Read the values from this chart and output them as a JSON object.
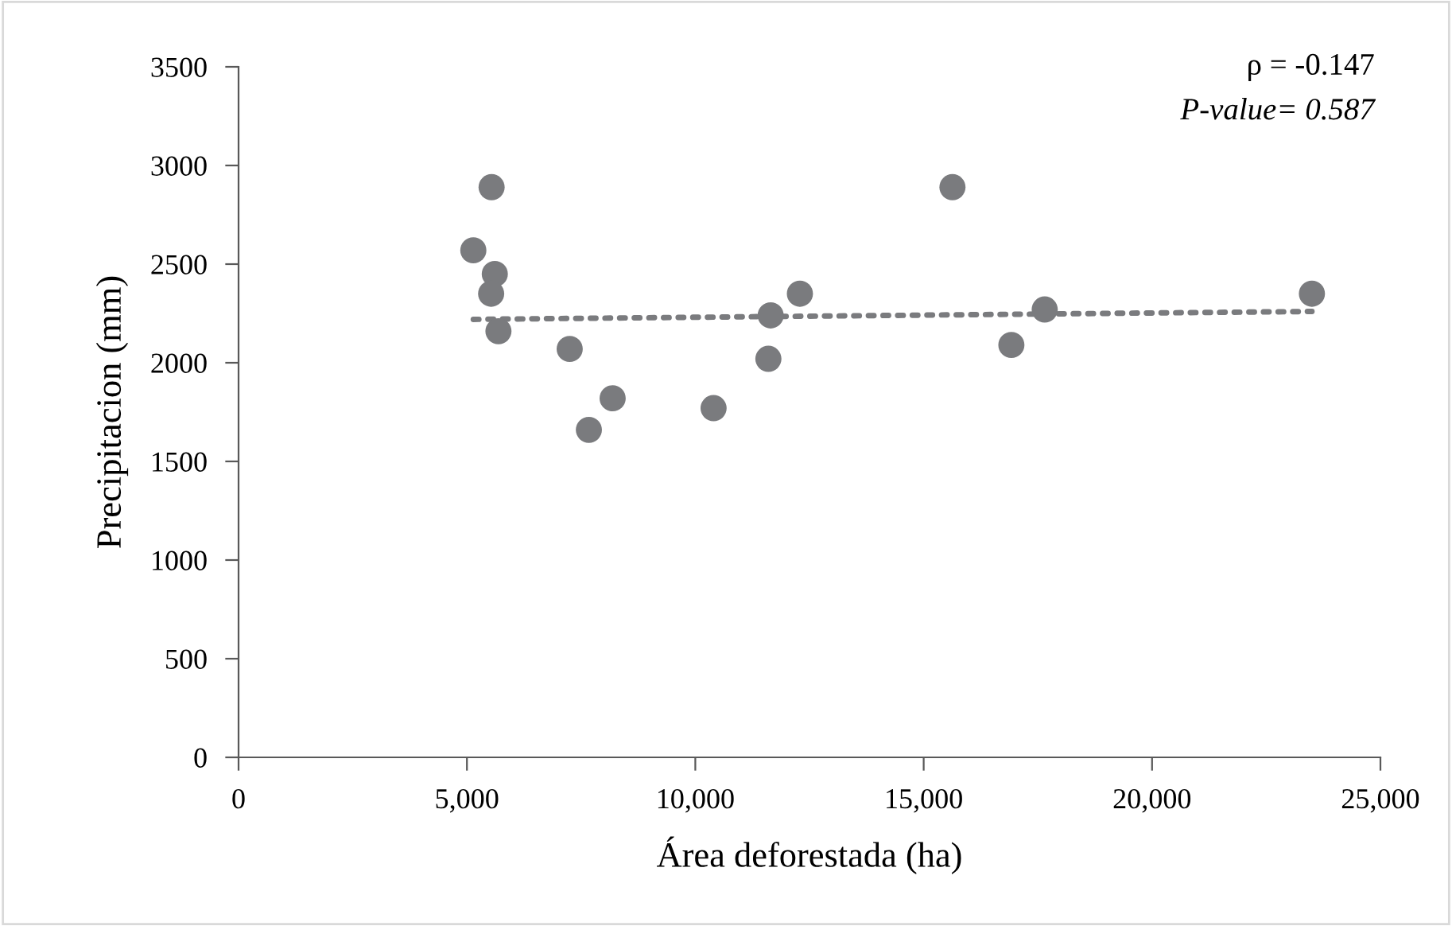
{
  "chart_data": {
    "type": "scatter",
    "xlabel": "Área deforestada (ha)",
    "ylabel": "Precipitacion (mm)",
    "xlim": [
      0,
      25000
    ],
    "xticks": [
      {
        "value": 0,
        "label": "0"
      },
      {
        "value": 5000,
        "label": "5,000"
      },
      {
        "value": 10000,
        "label": "10,000"
      },
      {
        "value": 15000,
        "label": "15,000"
      },
      {
        "value": 20000,
        "label": "20,000"
      },
      {
        "value": 25000,
        "label": "25,000"
      }
    ],
    "ylim": [
      0,
      3500
    ],
    "yticks": [
      0,
      500,
      1000,
      1500,
      2000,
      2500,
      3000,
      3500
    ],
    "grid": false,
    "marker": "circle",
    "series": [
      {
        "color": "#7a7b7e",
        "x": [
          5140,
          5540,
          5610,
          5530,
          5690,
          7250,
          8190,
          7670,
          10400,
          11650,
          11600,
          12290,
          15630,
          17650,
          16920,
          23500
        ],
        "values": [
          2570,
          2890,
          2450,
          2350,
          2160,
          2070,
          1820,
          1660,
          1770,
          2240,
          2020,
          2350,
          2890,
          2270,
          2090,
          2350
        ]
      },
      {
        "type": "line",
        "color": "#7a7b7e",
        "line_style": "dotted",
        "marker": "none",
        "x": [
          5140,
          23500
        ],
        "values": [
          2220,
          2260
        ]
      }
    ],
    "annotations": [
      "ρ = -0.147",
      "P-value= 0.587"
    ]
  }
}
